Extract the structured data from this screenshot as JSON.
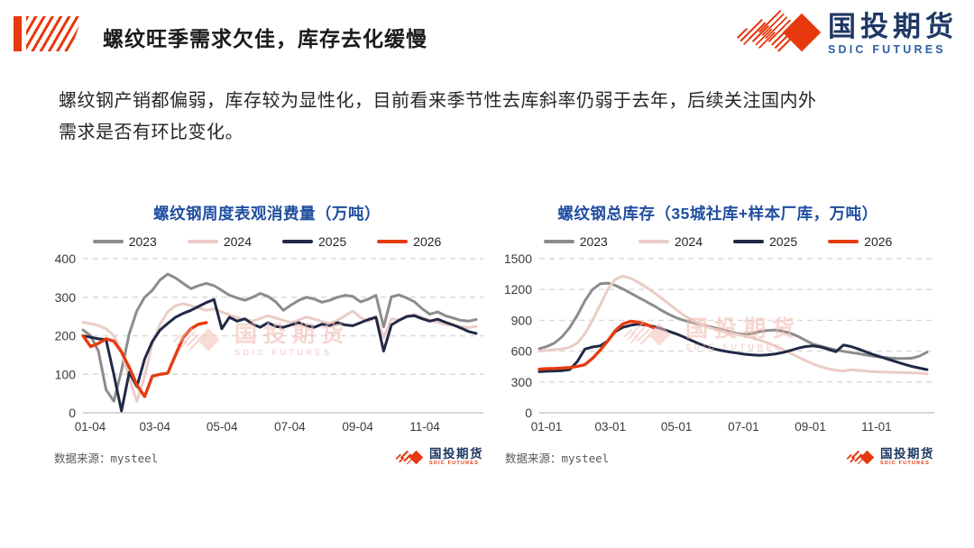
{
  "header": {
    "title": "螺纹旺季需求欠佳，库存去化缓慢"
  },
  "logo": {
    "cn": "国投期货",
    "en": "SDIC FUTURES"
  },
  "summary": {
    "line1": "螺纹钢产销都偏弱，库存较为显性化，目前看来季节性去库斜率仍弱于去年，后续关注国内外",
    "line2": "需求是否有环比变化。"
  },
  "watermark": {
    "cn": "国投期货",
    "en": "SDIC FUTURES"
  },
  "source_label": "数据来源：mysteel",
  "colors": {
    "accent_red": "#E8380D",
    "title_blue": "#1F4E9F",
    "logo_navy": "#1F3864",
    "logo_blue": "#2E5FA3",
    "grid": "#D9D9D9",
    "baseline": "#C8C8C8",
    "axis_text": "#3B3B3B",
    "text_dark": "#262626",
    "watermark_pink": "#F2B7AC",
    "source_gray": "#595959"
  },
  "chart_data": [
    {
      "type": "line",
      "title": "螺纹钢周度表观消费量（万吨）",
      "ylabel": "万吨",
      "ylim": [
        0,
        400
      ],
      "yticks": [
        0,
        100,
        200,
        300,
        400
      ],
      "xtick_labels": [
        "01-04",
        "03-04",
        "05-04",
        "07-04",
        "09-04",
        "11-04"
      ],
      "xtick_weeks": [
        0,
        8.4,
        17.1,
        25.9,
        34.7,
        43.4
      ],
      "n_weeks": 52,
      "grid": "dashed-horizontal",
      "legend_position": "top",
      "series": [
        {
          "name": "2023",
          "color": "#8C8C8C",
          "values": [
            215,
            200,
            160,
            60,
            30,
            110,
            205,
            265,
            300,
            318,
            345,
            360,
            350,
            336,
            322,
            330,
            336,
            330,
            318,
            305,
            298,
            292,
            300,
            310,
            302,
            288,
            266,
            280,
            292,
            300,
            295,
            287,
            292,
            300,
            305,
            302,
            288,
            295,
            305,
            223,
            301,
            306,
            298,
            288,
            270,
            256,
            262,
            252,
            246,
            240,
            238,
            242
          ]
        },
        {
          "name": "2024",
          "color": "#EBCCC6",
          "values": [
            235,
            231,
            227,
            218,
            200,
            160,
            90,
            30,
            95,
            180,
            230,
            262,
            278,
            283,
            278,
            272,
            266,
            270,
            262,
            254,
            247,
            242,
            238,
            245,
            252,
            246,
            240,
            234,
            241,
            249,
            243,
            237,
            232,
            240,
            252,
            264,
            247,
            237,
            249,
            195,
            244,
            241,
            250,
            256,
            248,
            240,
            235,
            229,
            227,
            224,
            221,
            224
          ]
        },
        {
          "name": "2025",
          "color": "#202945",
          "values": [
            200,
            196,
            192,
            190,
            100,
            5,
            105,
            68,
            140,
            185,
            215,
            232,
            248,
            258,
            266,
            276,
            286,
            294,
            218,
            248,
            238,
            244,
            230,
            222,
            234,
            224,
            222,
            228,
            234,
            226,
            222,
            230,
            226,
            234,
            228,
            226,
            234,
            242,
            248,
            160,
            228,
            240,
            250,
            252,
            244,
            238,
            243,
            235,
            228,
            220,
            211,
            206
          ]
        },
        {
          "name": "2026",
          "color": "#E63B11",
          "values": [
            200,
            172,
            180,
            192,
            186,
            158,
            118,
            72,
            42,
            95,
            100,
            103,
            150,
            195,
            218,
            230,
            234
          ]
        }
      ]
    },
    {
      "type": "line",
      "title": "螺纹钢总库存（35城社库+样本厂库，万吨）",
      "ylabel": "万吨",
      "ylim": [
        0,
        1500
      ],
      "yticks": [
        0,
        300,
        600,
        900,
        1200,
        1500
      ],
      "xtick_labels": [
        "01-01",
        "03-01",
        "05-01",
        "07-01",
        "09-01",
        "11-01"
      ],
      "xtick_weeks": [
        0,
        8.4,
        17.1,
        25.9,
        34.7,
        43.4
      ],
      "n_weeks": 52,
      "grid": "dashed-horizontal",
      "legend_position": "top",
      "series": [
        {
          "name": "2023",
          "color": "#8C8C8C",
          "values": [
            625,
            645,
            680,
            740,
            830,
            950,
            1090,
            1200,
            1255,
            1262,
            1240,
            1205,
            1165,
            1125,
            1085,
            1045,
            1000,
            960,
            925,
            900,
            880,
            862,
            845,
            828,
            810,
            790,
            772,
            762,
            772,
            790,
            802,
            806,
            795,
            775,
            745,
            705,
            668,
            648,
            630,
            612,
            598,
            586,
            575,
            562,
            550,
            540,
            534,
            530,
            528,
            532,
            552,
            590
          ]
        },
        {
          "name": "2024",
          "color": "#EBCCC6",
          "values": [
            600,
            607,
            614,
            622,
            638,
            680,
            770,
            900,
            1050,
            1200,
            1300,
            1330,
            1310,
            1270,
            1225,
            1175,
            1120,
            1062,
            1005,
            950,
            905,
            868,
            838,
            815,
            795,
            778,
            763,
            748,
            730,
            708,
            682,
            652,
            618,
            582,
            545,
            508,
            475,
            448,
            428,
            414,
            406,
            420,
            412,
            405,
            400,
            397,
            395,
            393,
            391,
            389,
            386,
            380
          ]
        },
        {
          "name": "2025",
          "color": "#202945",
          "values": [
            400,
            404,
            407,
            410,
            420,
            500,
            620,
            640,
            652,
            700,
            790,
            832,
            852,
            862,
            855,
            840,
            820,
            795,
            768,
            738,
            705,
            672,
            645,
            622,
            605,
            592,
            582,
            570,
            563,
            560,
            564,
            572,
            586,
            606,
            628,
            645,
            652,
            640,
            618,
            595,
            660,
            645,
            620,
            592,
            565,
            542,
            518,
            495,
            472,
            452,
            435,
            420
          ]
        },
        {
          "name": "2026",
          "color": "#E63B11",
          "values": [
            425,
            430,
            432,
            436,
            440,
            452,
            468,
            530,
            610,
            700,
            800,
            865,
            890,
            882,
            862,
            828
          ]
        }
      ]
    }
  ]
}
